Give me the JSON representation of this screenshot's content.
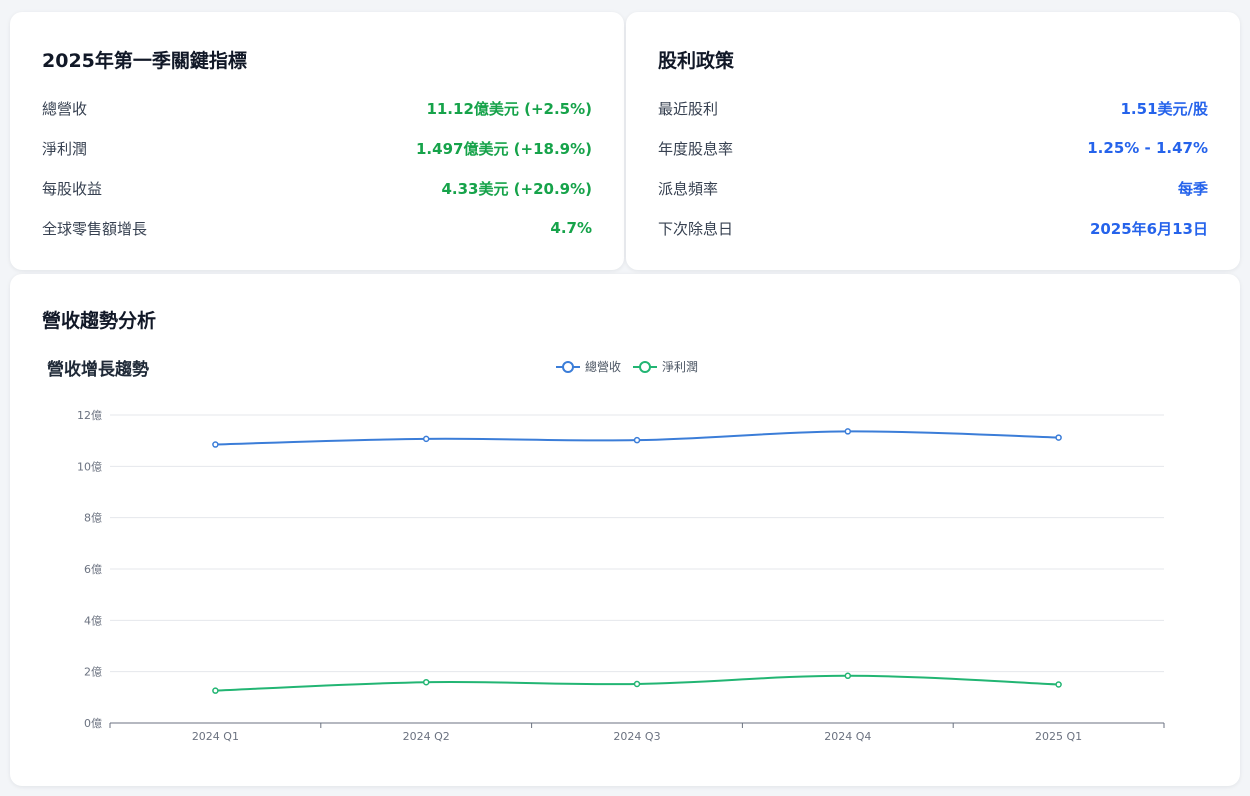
{
  "kpi": {
    "title": "2025年第一季關鍵指標",
    "rows": [
      {
        "label": "總營收",
        "value": "11.12億美元 (+2.5%)"
      },
      {
        "label": "淨利潤",
        "value": "1.497億美元 (+18.9%)"
      },
      {
        "label": "每股收益",
        "value": "4.33美元 (+20.9%)"
      },
      {
        "label": "全球零售額增長",
        "value": "4.7%"
      }
    ]
  },
  "dividend": {
    "title": "股利政策",
    "rows": [
      {
        "label": "最近股利",
        "value": "1.51美元/股"
      },
      {
        "label": "年度股息率",
        "value": "1.25% - 1.47%"
      },
      {
        "label": "派息頻率",
        "value": "每季"
      },
      {
        "label": "下次除息日",
        "value": "2025年6月13日"
      }
    ]
  },
  "section": {
    "title": "營收趨勢分析"
  },
  "colors": {
    "kpi_value": "#16a34a",
    "dividend_value": "#2563eb",
    "revenue_line": "#3b7dd8",
    "profit_line": "#22b573"
  },
  "chart_data": {
    "type": "line",
    "title": "營收增長趨勢",
    "categories": [
      "2024 Q1",
      "2024 Q2",
      "2024 Q3",
      "2024 Q4",
      "2025 Q1"
    ],
    "series": [
      {
        "name": "總營收",
        "values": [
          10.85,
          11.07,
          11.02,
          11.36,
          11.12
        ]
      },
      {
        "name": "淨利潤",
        "values": [
          1.26,
          1.59,
          1.52,
          1.84,
          1.5
        ]
      }
    ],
    "ylim": [
      0,
      12
    ],
    "y_ticks": [
      0,
      2,
      4,
      6,
      8,
      10,
      12
    ],
    "y_tick_suffix": "億",
    "grid": true,
    "legend": "top-center"
  }
}
